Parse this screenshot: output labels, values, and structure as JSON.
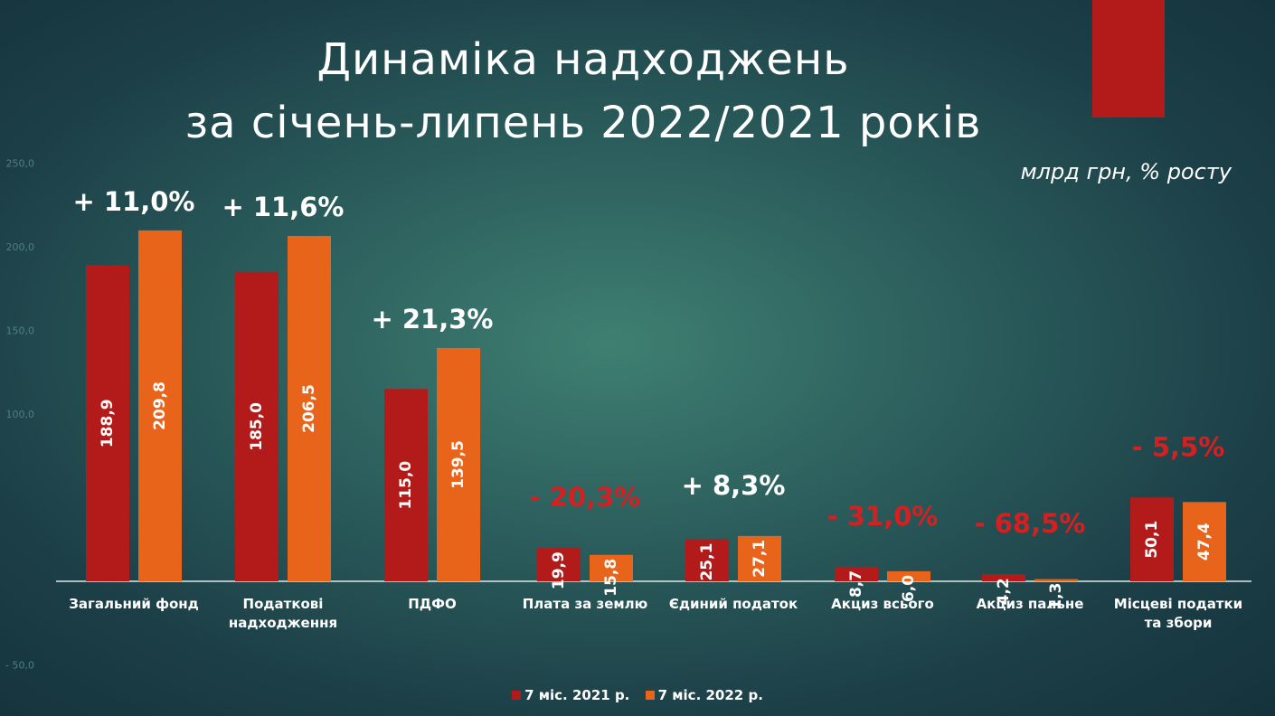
{
  "title_lines": [
    "Динаміка надходжень",
    "за січень-липень 2022/2021  років"
  ],
  "units": "млрд грн, % росту",
  "colors": {
    "series_2021": "#b31b1b",
    "series_2022": "#e8641b",
    "growth_positive": "#ffffff",
    "growth_negative": "#d42020",
    "axis_tick": "#4e7f80",
    "baseline": "#dce8e6"
  },
  "chart_data": {
    "type": "bar",
    "title": "",
    "xlabel": "",
    "ylabel": "",
    "ylim": [
      -50,
      250
    ],
    "yticks": [
      "250,0",
      "200,0",
      "150,0",
      "100,0",
      "50,0",
      "0,0",
      "- 50,0"
    ],
    "yticks_visible": [
      "250,0",
      "200,0",
      "150,0",
      "100,0",
      "- 50,0"
    ],
    "grid": false,
    "legend_position": "bottom",
    "categories": [
      [
        "Загальний фонд"
      ],
      [
        "Податкові",
        "надходження"
      ],
      [
        "ПДФО"
      ],
      [
        "Плата за землю"
      ],
      [
        "Єдиний податок"
      ],
      [
        "Акциз всього"
      ],
      [
        "Акциз пальне"
      ],
      [
        "Місцеві податки",
        "та збори"
      ]
    ],
    "series": [
      {
        "name": "7 міс. 2021 р.",
        "values": [
          188.9,
          185.0,
          115.0,
          19.9,
          25.1,
          8.7,
          4.2,
          50.1
        ],
        "labels": [
          "188,9",
          "185,0",
          "115,0",
          "19,9",
          "25,1",
          "8,7",
          "4,2",
          "50,1"
        ]
      },
      {
        "name": "7 міс. 2022 р.",
        "values": [
          209.8,
          206.5,
          139.5,
          15.8,
          27.1,
          6.0,
          1.3,
          47.4
        ],
        "labels": [
          "209,8",
          "206,5",
          "139,5",
          "15,8",
          "27,1",
          "6,0",
          "1,3",
          "47,4"
        ]
      }
    ],
    "growth": [
      "+ 11,0%",
      "+ 11,6%",
      "+ 21,3%",
      "- 20,3%",
      "+ 8,3%",
      "- 31,0%",
      "- 68,5%",
      "- 5,5%"
    ],
    "growth_direction": [
      "up",
      "up",
      "up",
      "down",
      "up",
      "down",
      "down",
      "down"
    ]
  }
}
